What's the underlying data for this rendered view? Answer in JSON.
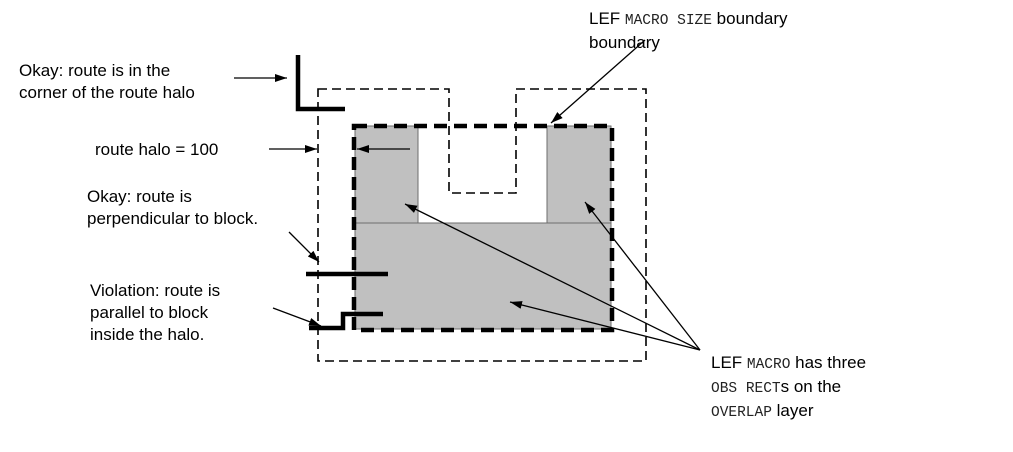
{
  "labels": {
    "corner_ok": {
      "line1": "Okay: route is in the",
      "line2": "corner of the route halo"
    },
    "halo_value": "route halo = 100",
    "perpendicular_ok": {
      "line1": "Okay: route is",
      "line2": "perpendicular to block."
    },
    "violation": {
      "line1": "Violation: route is",
      "line2": "parallel to block",
      "line3": "inside the halo."
    },
    "size_boundary": {
      "prefix": "LEF ",
      "kw1": "MACRO",
      "space": " ",
      "kw2": "SIZE",
      "suffix": " boundary",
      "line2": "boundary"
    },
    "obs_rects": {
      "l1_prefix": "LEF ",
      "l1_kw": "MACRO",
      "l1_suffix": " has three",
      "l2_kw1": "OBS",
      "l2_space": " ",
      "l2_kw2": "RECT",
      "l2_suffix": "s on the",
      "l3_kw": "OVERLAP",
      "l3_suffix": " layer"
    }
  },
  "colors": {
    "obs_fill": "#c0c0c0",
    "stroke": "#000000",
    "background": "#ffffff"
  }
}
